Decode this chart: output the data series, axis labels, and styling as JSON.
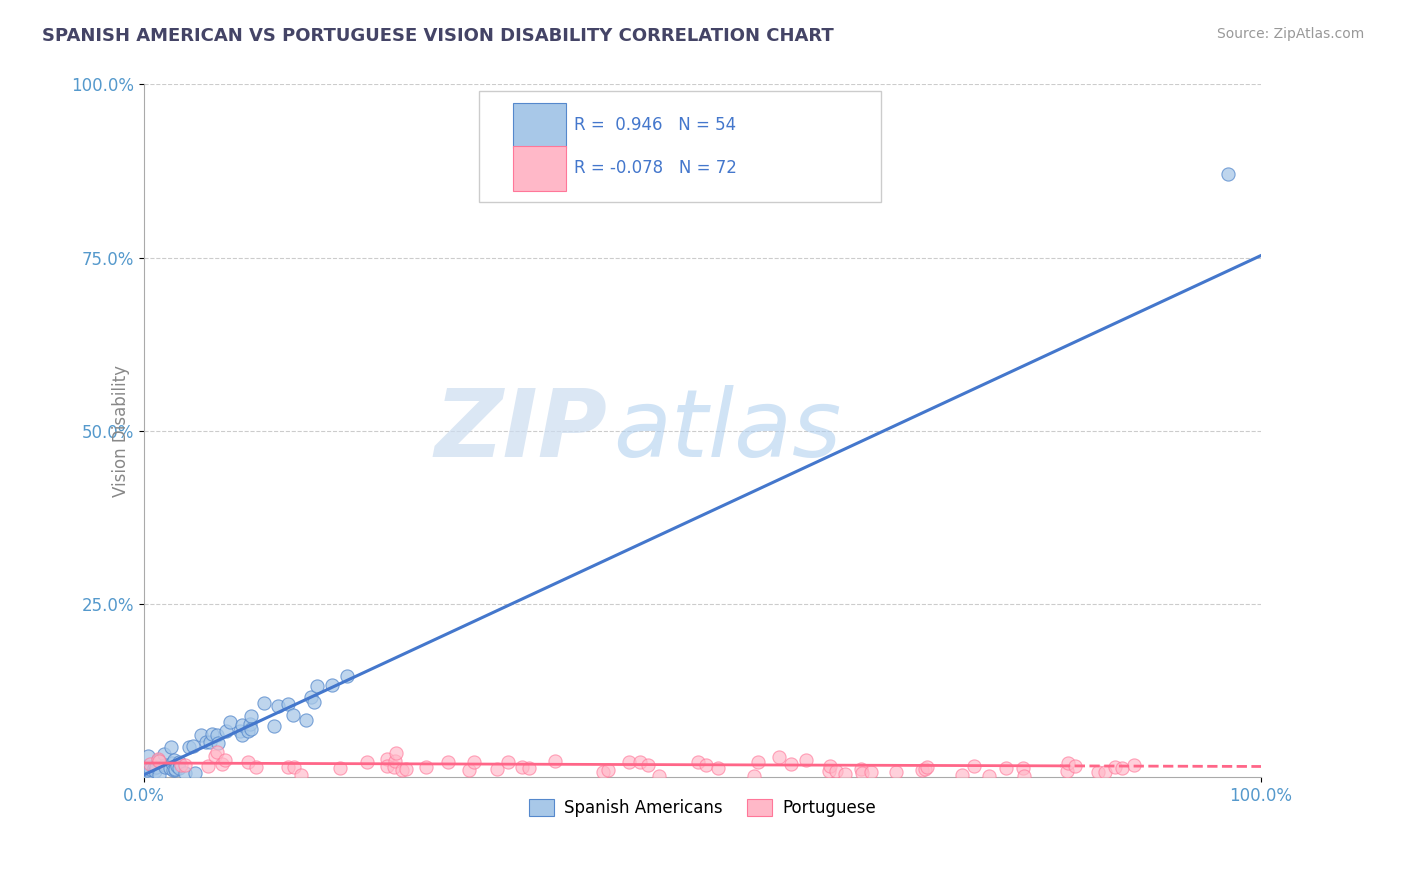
{
  "title": "SPANISH AMERICAN VS PORTUGUESE VISION DISABILITY CORRELATION CHART",
  "source": "Source: ZipAtlas.com",
  "ylabel": "Vision Disability",
  "xlim": [
    0,
    100
  ],
  "ylim": [
    0,
    100
  ],
  "xtick_positions": [
    0,
    100
  ],
  "xtick_labels": [
    "0.0%",
    "100.0%"
  ],
  "ytick_positions": [
    25,
    50,
    75,
    100
  ],
  "ytick_labels": [
    "25.0%",
    "50.0%",
    "75.0%",
    "100.0%"
  ],
  "blue_R": 0.946,
  "blue_N": 54,
  "pink_R": -0.078,
  "pink_N": 72,
  "blue_scatter_color": "#A8C8E8",
  "blue_scatter_edge": "#5588CC",
  "pink_scatter_color": "#FFB8C8",
  "pink_scatter_edge": "#FF7799",
  "blue_line_color": "#4477CC",
  "pink_line_color": "#FF6688",
  "watermark_text": "ZIP",
  "watermark_text2": "atlas",
  "background_color": "#FFFFFF",
  "grid_color": "#CCCCCC",
  "title_color": "#444466",
  "axis_tick_color": "#5599CC",
  "ylabel_color": "#888888",
  "source_color": "#999999",
  "legend_label1": "Spanish Americans",
  "legend_label2": "Portuguese",
  "legend_border_color": "#CCCCCC",
  "legend_text_color": "#4477CC",
  "spine_color": "#AAAAAA"
}
